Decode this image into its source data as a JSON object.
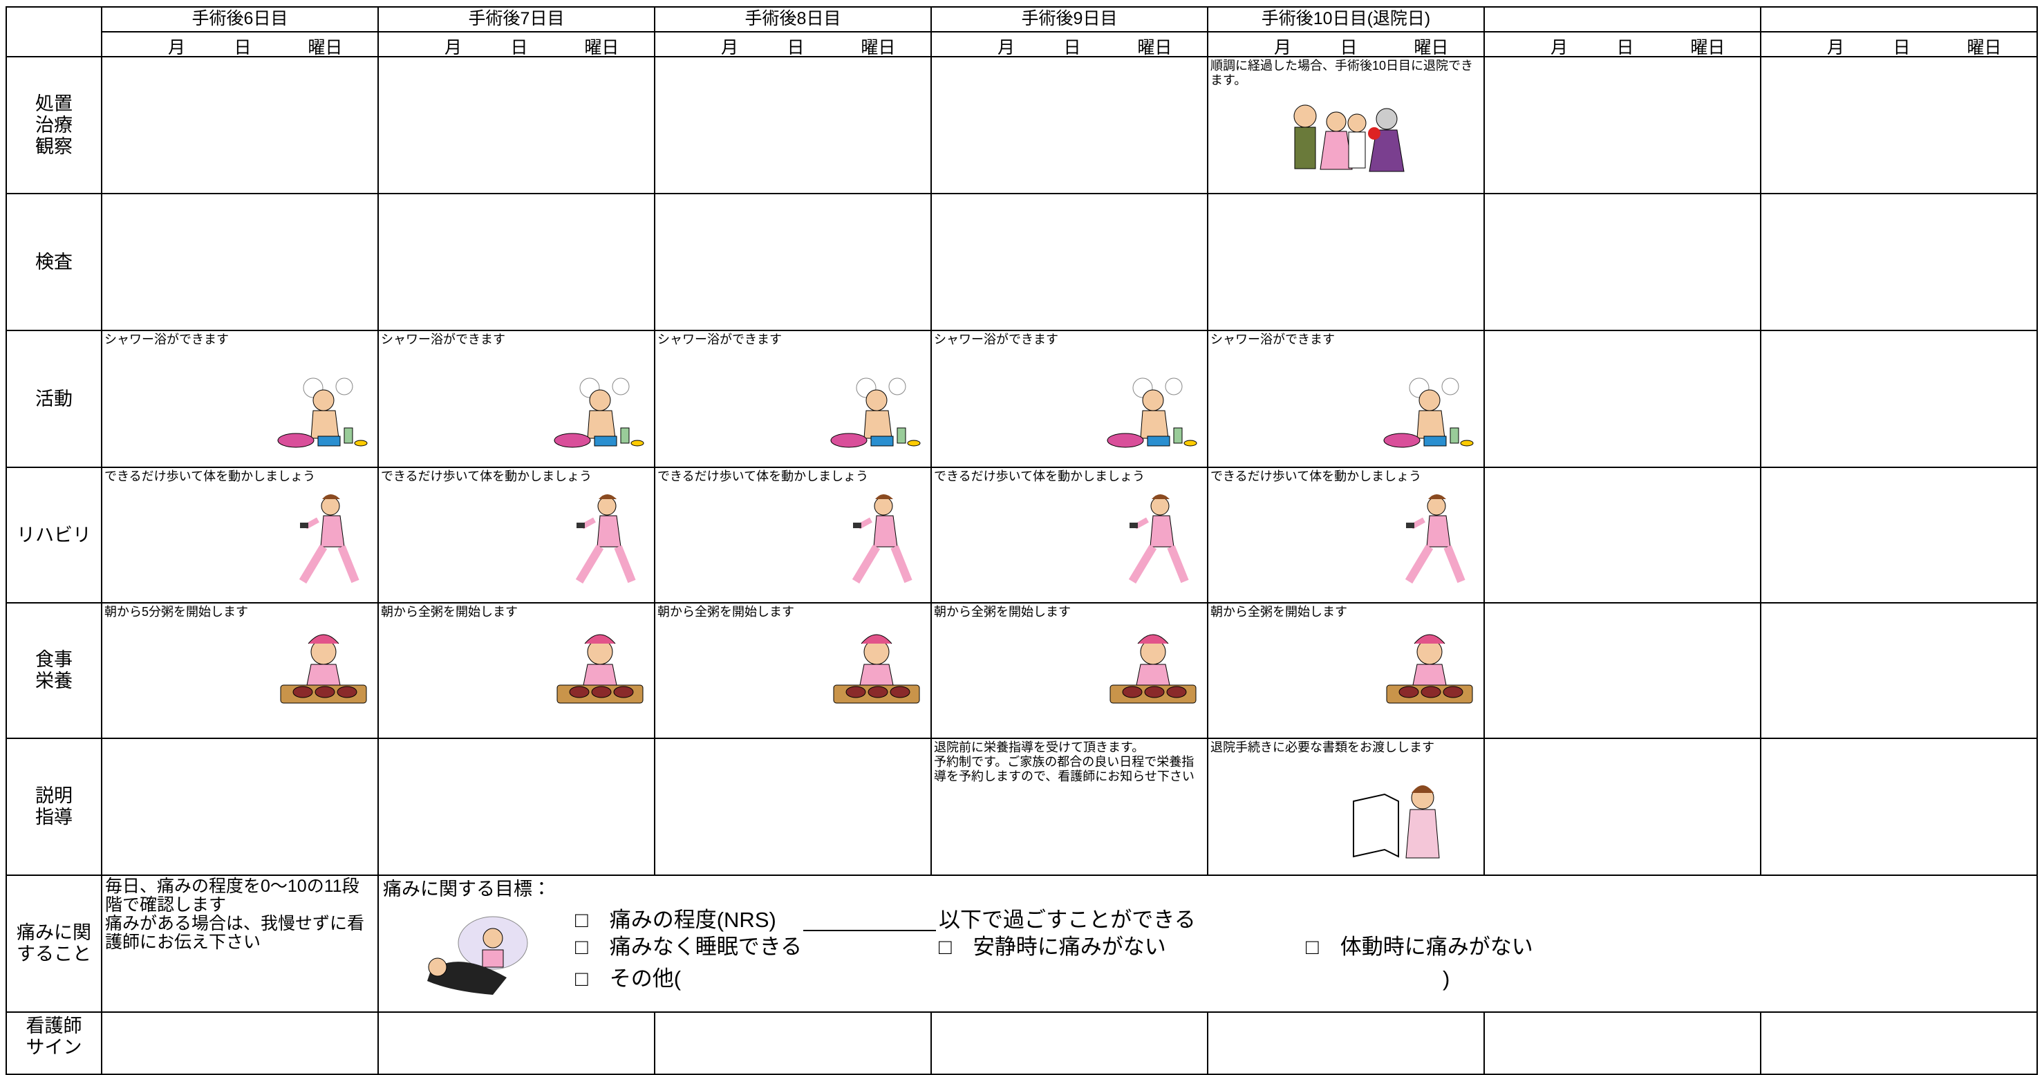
{
  "columns": [
    {
      "title": "手術後6日目",
      "month": "月",
      "day": "日",
      "weekday": "曜日"
    },
    {
      "title": "手術後7日目",
      "month": "月",
      "day": "日",
      "weekday": "曜日"
    },
    {
      "title": "手術後8日目",
      "month": "月",
      "day": "日",
      "weekday": "曜日"
    },
    {
      "title": "手術後9日目",
      "month": "月",
      "day": "日",
      "weekday": "曜日"
    },
    {
      "title": "手術後10日目(退院日)",
      "month": "月",
      "day": "日",
      "weekday": "曜日"
    },
    {
      "month": "月",
      "day": "日",
      "weekday": "曜日"
    },
    {
      "month": "月",
      "day": "日",
      "weekday": "曜日"
    }
  ],
  "rows": [
    {
      "label": "処置\n治療\n観察",
      "cells": [
        null,
        null,
        null,
        null,
        "順調に経過した場合、手術後10日目に退院できます。",
        null,
        null
      ]
    },
    {
      "label": "検査",
      "cells": [
        null,
        null,
        null,
        null,
        null,
        null,
        null
      ]
    },
    {
      "label": "活動",
      "cells": [
        "シャワー浴ができます",
        "シャワー浴ができます",
        "シャワー浴ができます",
        "シャワー浴ができます",
        "シャワー浴ができます",
        null,
        null
      ]
    },
    {
      "label": "リハビリ",
      "cells": [
        "できるだけ歩いて体を動かしましょう",
        "できるだけ歩いて体を動かしましょう",
        "できるだけ歩いて体を動かしましょう",
        "できるだけ歩いて体を動かしましょう",
        "できるだけ歩いて体を動かしましょう",
        null,
        null
      ]
    },
    {
      "label": "食事\n栄養",
      "cells": [
        "朝から5分粥を開始します",
        "朝から全粥を開始します",
        "朝から全粥を開始します",
        "朝から全粥を開始します",
        "朝から全粥を開始します",
        null,
        null
      ]
    },
    {
      "label": "説明\n指導",
      "cells": [
        null,
        null,
        null,
        "退院前に栄養指導を受けて頂きます。\n予約制です。ご家族の都合の良い日程で栄養指導を予約しますので、看護師にお知らせ下さい",
        "退院手続きに必要な書類をお渡しします",
        null,
        null
      ]
    }
  ],
  "pain": {
    "label": "痛みに関すること",
    "note": "毎日、痛みの程度を0～10の11段階で確認します\n痛みがある場合は、我慢せずに看護師にお伝え下さい",
    "goal_title": "痛みに関する目標：",
    "goals": [
      "□　痛みの程度(NRS)",
      "以下で過ごすことができる",
      "□　痛みなく睡眠できる",
      "□　安静時に痛みがない",
      "□　体動時に痛みがない",
      "□　その他(",
      ")"
    ]
  },
  "sign": {
    "label": "看護師\nサイン",
    "cells": [
      null,
      null,
      null,
      null,
      null,
      null,
      null
    ]
  }
}
